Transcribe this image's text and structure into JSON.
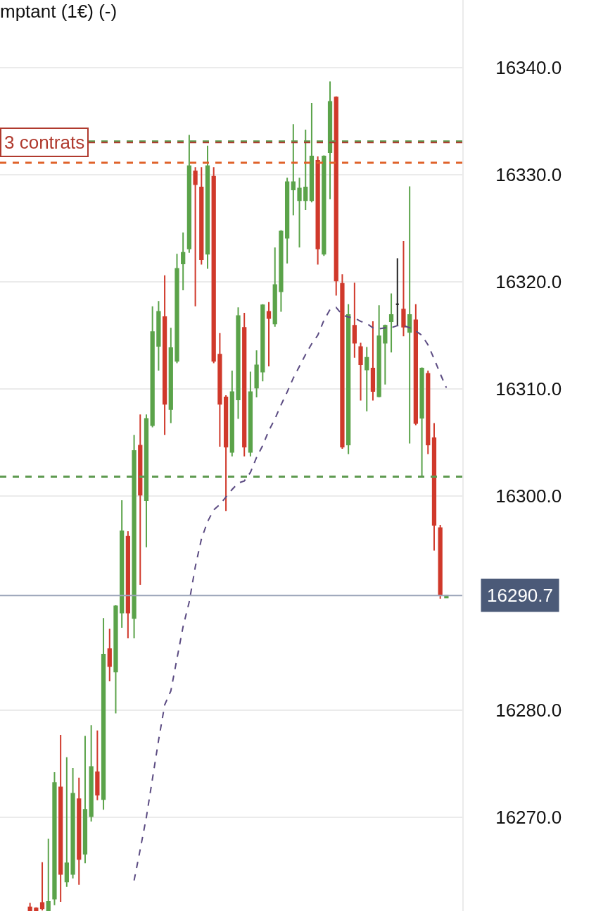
{
  "chart_data": {
    "type": "candlestick",
    "title": "mptant (1€) (-)",
    "categories": [
      null,
      null,
      null,
      null,
      null,
      null,
      null,
      null,
      null,
      null,
      null,
      null,
      null,
      null,
      null,
      null,
      null,
      null,
      null,
      null,
      null,
      null,
      null,
      null,
      null,
      null,
      null,
      null,
      null,
      null,
      null,
      null,
      null,
      null,
      null,
      null,
      null,
      null,
      null,
      null,
      null,
      null,
      null,
      null,
      null,
      null,
      null,
      null,
      null,
      null,
      null,
      null,
      null,
      null,
      null,
      null,
      null,
      null,
      null,
      null,
      null,
      null,
      null,
      null,
      null,
      null,
      null,
      null,
      null
    ],
    "ohlc": [
      [
        16261.6,
        16262.0,
        16261.3,
        16261.3
      ],
      [
        16261.5,
        16261.6,
        16261.3,
        16261.3
      ],
      [
        16262.0,
        16265.8,
        16261.3,
        16261.5
      ],
      [
        16261.3,
        16268.0,
        16261.3,
        16262.1
      ],
      [
        16262.4,
        16274.2,
        16261.8,
        16273.2
      ],
      [
        16272.8,
        16277.7,
        16262.1,
        16264.7
      ],
      [
        16264.0,
        16275.6,
        16263.5,
        16265.7
      ],
      [
        16264.7,
        16274.6,
        16264.3,
        16272.2
      ],
      [
        16271.7,
        16273.7,
        16263.7,
        16266.1
      ],
      [
        16266.6,
        16277.6,
        16265.7,
        16270.7
      ],
      [
        16270.1,
        16278.6,
        16269.6,
        16274.7
      ],
      [
        16274.2,
        16278.1,
        16271.6,
        16272.1
      ],
      [
        16271.7,
        16288.6,
        16270.7,
        16285.2
      ],
      [
        16285.7,
        16287.6,
        16282.7,
        16284.1
      ],
      [
        16283.6,
        16289.8,
        16279.7,
        16289.7
      ],
      [
        16289.1,
        16299.6,
        16287.7,
        16296.7
      ],
      [
        16296.2,
        16296.7,
        16286.7,
        16289.1
      ],
      [
        16288.6,
        16305.7,
        16286.7,
        16304.2
      ],
      [
        16304.7,
        16307.6,
        16291.7,
        16300.1
      ],
      [
        16299.6,
        16307.6,
        16295.2,
        16307.2
      ],
      [
        16306.6,
        16317.7,
        16306.4,
        16315.3
      ],
      [
        16314.0,
        16318.2,
        16311.7,
        16317.2
      ],
      [
        16316.7,
        16320.6,
        16305.7,
        16308.6
      ],
      [
        16308.1,
        16315.7,
        16306.8,
        16313.8
      ],
      [
        16312.6,
        16322.6,
        16312.4,
        16321.2
      ],
      [
        16321.7,
        16324.6,
        16319.2,
        16322.7
      ],
      [
        16323.1,
        16333.7,
        16322.7,
        16330.8
      ],
      [
        16330.3,
        16330.7,
        16317.7,
        16329.1
      ],
      [
        16328.8,
        16330.7,
        16321.6,
        16322.1
      ],
      [
        16322.6,
        16332.7,
        16321.2,
        16330.8
      ],
      [
        16329.8,
        16330.7,
        16312.4,
        16312.6
      ],
      [
        16313.2,
        16315.2,
        16304.6,
        16308.6
      ],
      [
        16309.2,
        16309.4,
        16298.6,
        16304.6
      ],
      [
        16304.1,
        16311.7,
        16303.7,
        16309.7
      ],
      [
        16309.0,
        16317.6,
        16307.2,
        16316.8
      ],
      [
        16315.7,
        16317.1,
        16303.7,
        16304.6
      ],
      [
        16304.1,
        16311.6,
        16303.7,
        16309.7
      ],
      [
        16310.1,
        16313.6,
        16309.2,
        16312.2
      ],
      [
        16311.6,
        16317.9,
        16310.7,
        16317.8
      ],
      [
        16317.2,
        16318.1,
        16312.1,
        16316.6
      ],
      [
        16316.1,
        16323.2,
        16315.8,
        16319.7
      ],
      [
        16319.1,
        16324.8,
        16317.2,
        16324.7
      ],
      [
        16324.1,
        16329.7,
        16321.7,
        16329.3
      ],
      [
        16328.6,
        16334.7,
        16326.2,
        16329.3
      ],
      [
        16327.6,
        16329.7,
        16323.2,
        16328.7
      ],
      [
        16327.6,
        16334.2,
        16326.7,
        16328.8
      ],
      [
        16327.6,
        16336.7,
        16327.4,
        16331.7
      ],
      [
        16331.3,
        16331.7,
        16321.6,
        16323.1
      ],
      [
        16322.6,
        16331.8,
        16322.4,
        16331.7
      ],
      [
        16332.1,
        16338.7,
        16327.7,
        16336.8
      ],
      [
        16337.2,
        16337.3,
        16318.7,
        16320.1
      ],
      [
        16319.8,
        16320.7,
        16304.4,
        16304.6
      ],
      [
        16304.8,
        16317.9,
        16303.9,
        16316.9
      ],
      [
        16315.9,
        16319.9,
        16312.9,
        16314.3
      ],
      [
        16313.9,
        16314.3,
        16308.9,
        16312.3
      ],
      [
        16311.8,
        16313.9,
        16307.9,
        16312.9
      ],
      [
        16311.9,
        16316.3,
        16308.9,
        16309.8
      ],
      [
        16309.3,
        16317.8,
        16309.2,
        16314.9
      ],
      [
        16314.3,
        16316.0,
        16310.4,
        16315.9
      ],
      [
        16316.3,
        16318.9,
        16313.4,
        16316.9
      ],
      [
        16317.9,
        16322.2,
        16315.9,
        16317.9
      ],
      [
        16317.4,
        16323.8,
        16314.9,
        16315.8
      ],
      [
        16315.3,
        16328.9,
        16304.9,
        16316.9
      ],
      [
        16316.4,
        16317.9,
        16306.6,
        16306.8
      ],
      [
        16307.3,
        16312.0,
        16301.8,
        16311.9
      ],
      [
        16311.4,
        16311.7,
        16303.9,
        16304.8
      ],
      [
        16305.4,
        16306.8,
        16294.9,
        16297.3
      ],
      [
        16297.0,
        16297.3,
        16290.4,
        16290.8
      ],
      [
        16290.5,
        16290.7,
        16290.5,
        16290.7
      ]
    ],
    "colors": [
      "#d0392b",
      "#d0392b",
      "#d0392b",
      "#5ba34a",
      "#5ba34a",
      "#d0392b",
      "#5ba34a",
      "#5ba34a",
      "#d0392b",
      "#5ba34a",
      "#5ba34a",
      "#d0392b",
      "#5ba34a",
      "#d0392b",
      "#5ba34a",
      "#5ba34a",
      "#d0392b",
      "#5ba34a",
      "#d0392b",
      "#5ba34a",
      "#5ba34a",
      "#5ba34a",
      "#d0392b",
      "#5ba34a",
      "#5ba34a",
      "#5ba34a",
      "#5ba34a",
      "#d0392b",
      "#d0392b",
      "#5ba34a",
      "#d0392b",
      "#d0392b",
      "#d0392b",
      "#5ba34a",
      "#5ba34a",
      "#d0392b",
      "#5ba34a",
      "#5ba34a",
      "#5ba34a",
      "#d0392b",
      "#5ba34a",
      "#5ba34a",
      "#5ba34a",
      "#5ba34a",
      "#5ba34a",
      "#5ba34a",
      "#5ba34a",
      "#d0392b",
      "#5ba34a",
      "#5ba34a",
      "#d0392b",
      "#d0392b",
      "#5ba34a",
      "#d0392b",
      "#d0392b",
      "#5ba34a",
      "#d0392b",
      "#5ba34a",
      "#5ba34a",
      "#5ba34a",
      "#222222",
      "#d0392b",
      "#5ba34a",
      "#d0392b",
      "#5ba34a",
      "#d0392b",
      "#d0392b",
      "#d0392b",
      "#5ba34a"
    ],
    "series": [
      {
        "type": "line",
        "color": "#5b4b82",
        "line_style": "dashed",
        "values": [
          null,
          null,
          null,
          null,
          null,
          null,
          null,
          null,
          null,
          null,
          null,
          null,
          null,
          null,
          null,
          null,
          null,
          16264.1,
          16267.0,
          16270.0,
          16273.6,
          16277.2,
          16280.5,
          16281.8,
          16284.8,
          16287.8,
          16290.1,
          16293.4,
          16296.0,
          16297.6,
          16298.7,
          16299.2,
          16299.9,
          16300.6,
          16301.2,
          16301.4,
          16302.2,
          16303.6,
          16304.7,
          16306.1,
          16307.2,
          16308.5,
          16309.7,
          16311.0,
          16312.1,
          16313.2,
          16314.2,
          16315.0,
          16316.4,
          16317.4,
          16317.6,
          16316.9,
          16316.7,
          16316.6,
          16316.3,
          16316.1,
          16315.7,
          16315.6,
          16315.7,
          16315.7,
          16315.9,
          16315.9,
          16315.7,
          16315.4,
          16315.0,
          16314.1,
          16312.8,
          16311.4,
          16310.1
        ]
      }
    ],
    "ylim": [
      16261.25,
      16346.3
    ],
    "yticks": [
      {
        "value": 16270,
        "label": "16270.0"
      },
      {
        "value": 16280,
        "label": "16280.0"
      },
      {
        "value": 16300,
        "label": "16300.0"
      },
      {
        "value": 16310,
        "label": "16310.0"
      },
      {
        "value": 16320,
        "label": "16320.0"
      },
      {
        "value": 16330,
        "label": "16330.0"
      },
      {
        "value": 16340,
        "label": "16340.0"
      }
    ],
    "ref_lines": [
      {
        "axis": "y",
        "value": 16333.1,
        "color": "#5e9a50",
        "line_style": "dashed"
      },
      {
        "axis": "y",
        "value": 16333.0,
        "label": "3 contrats",
        "color": "#b03a2e",
        "line_style": "dashed"
      },
      {
        "axis": "y",
        "value": 16331.1,
        "color": "#e0622a",
        "line_style": "dashed"
      },
      {
        "axis": "y",
        "value": 16301.8,
        "color": "#5e9a50",
        "line_style": "dashed"
      },
      {
        "axis": "y",
        "value": 16290.7,
        "label": "16290.7",
        "color": "#9aa3b8",
        "line_style": "solid"
      }
    ],
    "grid": "y",
    "tick_labels": "y"
  }
}
